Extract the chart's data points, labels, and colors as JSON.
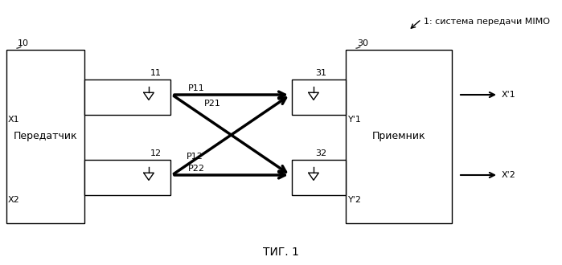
{
  "title": "ΤИГ. 1",
  "top_label": "1: система передачи MIMO",
  "transmitter_label": "Передатчик",
  "receiver_label": "Приемник",
  "box10_label": "10",
  "box30_label": "30",
  "ant11_label": "11",
  "ant12_label": "12",
  "ant31_label": "31",
  "ant32_label": "32",
  "x1_label": "X1",
  "x2_label": "X2",
  "y1_label": "Y'1",
  "y2_label": "Y'2",
  "xp1_label": "X'1",
  "xp2_label": "X'2",
  "p11_label": "P11",
  "p12_label": "P12",
  "p21_label": "P21",
  "p22_label": "P22",
  "bg_color": "#ffffff",
  "line_color": "#000000",
  "font_size": 8,
  "fig_width": 6.99,
  "fig_height": 3.3
}
